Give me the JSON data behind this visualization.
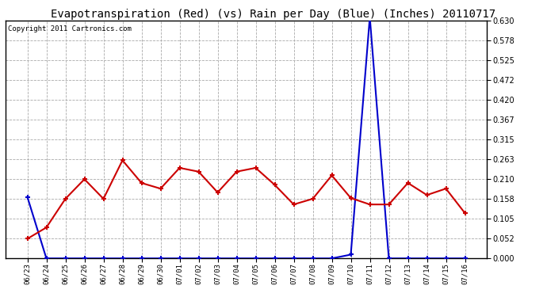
{
  "title": "Evapotranspiration (Red) (vs) Rain per Day (Blue) (Inches) 20110717",
  "copyright": "Copyright 2011 Cartronics.com",
  "x_labels": [
    "06/23",
    "06/24",
    "06/25",
    "06/26",
    "06/27",
    "06/28",
    "06/29",
    "06/30",
    "07/01",
    "07/02",
    "07/03",
    "07/04",
    "07/05",
    "07/06",
    "07/07",
    "07/08",
    "07/09",
    "07/10",
    "07/11",
    "07/12",
    "07/13",
    "07/14",
    "07/15",
    "07/16"
  ],
  "red_data": [
    0.052,
    0.082,
    0.158,
    0.21,
    0.158,
    0.26,
    0.2,
    0.185,
    0.24,
    0.23,
    0.175,
    0.23,
    0.24,
    0.195,
    0.143,
    0.158,
    0.22,
    0.16,
    0.143,
    0.143,
    0.2,
    0.168,
    0.185,
    0.12
  ],
  "blue_data": [
    0.163,
    0.0,
    0.0,
    0.0,
    0.0,
    0.0,
    0.0,
    0.0,
    0.0,
    0.0,
    0.0,
    0.0,
    0.0,
    0.0,
    0.0,
    0.0,
    0.0,
    0.01,
    0.64,
    0.0,
    0.0,
    0.0,
    0.0,
    0.0
  ],
  "y_ticks": [
    0.0,
    0.052,
    0.105,
    0.158,
    0.21,
    0.263,
    0.315,
    0.367,
    0.42,
    0.472,
    0.525,
    0.578,
    0.63
  ],
  "y_max": 0.63,
  "bg_color": "#ffffff",
  "plot_bg_color": "#ffffff",
  "grid_color": "#aaaaaa",
  "red_color": "#cc0000",
  "blue_color": "#0000cc",
  "title_fontsize": 10,
  "copyright_fontsize": 6.5
}
